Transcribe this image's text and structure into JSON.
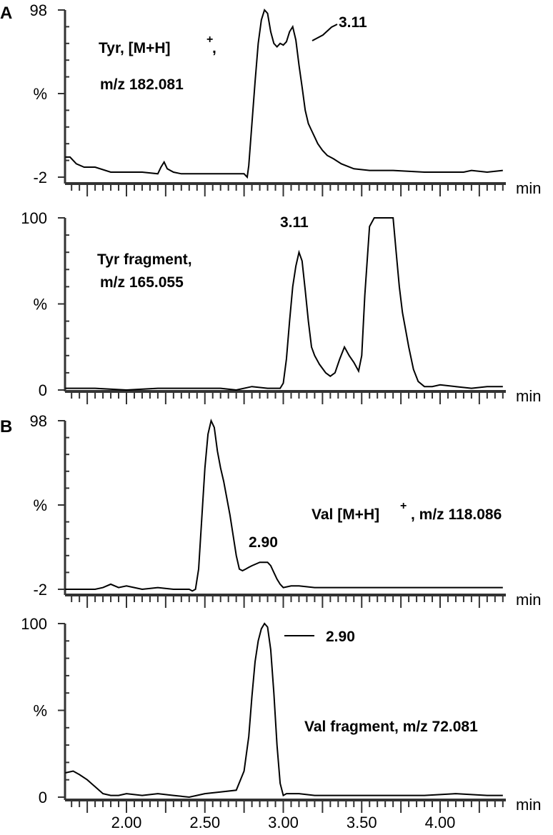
{
  "chart_data": [
    {
      "type": "line",
      "panel_label": "A",
      "title": "Tyr, [M+H]+, m/z 182.081",
      "title_lines": [
        "Tyr, [M+H]",
        "m/z 182.081"
      ],
      "xlabel": "min",
      "ylabel": "%",
      "ylim": [
        -2,
        98
      ],
      "ytick_labels": [
        "98",
        "%",
        "-2"
      ],
      "annotation": {
        "text": "3.11",
        "x": 3.11
      },
      "x": [
        1.61,
        1.64,
        1.68,
        1.73,
        1.8,
        1.9,
        2.0,
        2.1,
        2.2,
        2.22,
        2.24,
        2.26,
        2.3,
        2.35,
        2.4,
        2.5,
        2.6,
        2.7,
        2.75,
        2.77,
        2.78,
        2.8,
        2.82,
        2.84,
        2.86,
        2.88,
        2.9,
        2.92,
        2.94,
        2.96,
        2.98,
        3.0,
        3.02,
        3.04,
        3.06,
        3.08,
        3.1,
        3.12,
        3.14,
        3.16,
        3.18,
        3.2,
        3.22,
        3.25,
        3.28,
        3.32,
        3.37,
        3.45,
        3.55,
        3.7,
        3.9,
        4.05,
        4.15,
        4.2,
        4.3,
        4.4
      ],
      "y": [
        10,
        10,
        6,
        4,
        4,
        1,
        1,
        1,
        0,
        4,
        7,
        3,
        1,
        0,
        0,
        0,
        0,
        0,
        0,
        -2,
        5,
        30,
        55,
        78,
        92,
        98,
        96,
        85,
        78,
        76,
        78,
        77,
        79,
        85,
        88,
        80,
        65,
        52,
        38,
        30,
        26,
        22,
        18,
        14,
        11,
        9,
        6,
        3,
        2,
        2,
        1,
        1,
        1,
        2,
        1,
        2
      ]
    },
    {
      "type": "line",
      "title": "Tyr fragment, m/z 165.055",
      "title_lines": [
        "Tyr fragment,",
        "m/z 165.055"
      ],
      "xlabel": "min",
      "ylabel": "%",
      "ylim": [
        0,
        100
      ],
      "ytick_labels": [
        "100",
        "%",
        "0"
      ],
      "annotation": {
        "text": "3.11",
        "x": 3.11
      },
      "x": [
        1.61,
        1.8,
        2.0,
        2.2,
        2.4,
        2.6,
        2.7,
        2.8,
        2.9,
        2.98,
        3.0,
        3.02,
        3.04,
        3.06,
        3.08,
        3.1,
        3.12,
        3.14,
        3.16,
        3.18,
        3.2,
        3.23,
        3.27,
        3.3,
        3.33,
        3.36,
        3.39,
        3.42,
        3.45,
        3.48,
        3.5,
        3.52,
        3.55,
        3.58,
        3.6,
        3.65,
        3.7,
        3.72,
        3.74,
        3.76,
        3.78,
        3.8,
        3.83,
        3.86,
        3.9,
        3.95,
        4.0,
        4.1,
        4.2,
        4.3,
        4.4
      ],
      "y": [
        1,
        1,
        0,
        1,
        1,
        1,
        0,
        2,
        1,
        1,
        4,
        18,
        40,
        60,
        72,
        80,
        75,
        58,
        40,
        25,
        20,
        15,
        10,
        8,
        10,
        18,
        25,
        20,
        16,
        11,
        20,
        55,
        95,
        100,
        100,
        100,
        100,
        80,
        60,
        45,
        35,
        25,
        12,
        5,
        2,
        2,
        3,
        2,
        1,
        2,
        2
      ]
    },
    {
      "type": "line",
      "panel_label": "B",
      "title": "Val [M+H]+, m/z 118.086",
      "title_lines": [
        "Val [M+H]",
        ", m/z 118.086"
      ],
      "xlabel": "min",
      "ylabel": "%",
      "ylim": [
        -2,
        98
      ],
      "ytick_labels": [
        "98",
        "%",
        "-2"
      ],
      "annotation": {
        "text": "2.90",
        "x": 2.9
      },
      "x": [
        1.61,
        1.8,
        1.85,
        1.9,
        1.95,
        2.0,
        2.05,
        2.1,
        2.2,
        2.3,
        2.4,
        2.42,
        2.44,
        2.46,
        2.48,
        2.5,
        2.52,
        2.54,
        2.56,
        2.58,
        2.6,
        2.62,
        2.64,
        2.66,
        2.68,
        2.7,
        2.72,
        2.74,
        2.76,
        2.78,
        2.8,
        2.85,
        2.9,
        2.92,
        2.94,
        2.96,
        2.98,
        3.0,
        3.05,
        3.1,
        3.2,
        4.4
      ],
      "y": [
        -2,
        -2,
        -1,
        1,
        -1,
        0,
        -1,
        -2,
        -1,
        -2,
        -2,
        -3,
        -2,
        10,
        40,
        70,
        90,
        98,
        94,
        80,
        70,
        62,
        52,
        42,
        30,
        18,
        10,
        9,
        10,
        11,
        12,
        14,
        14,
        12,
        8,
        4,
        1,
        -1,
        0,
        0,
        -1,
        -1
      ]
    },
    {
      "type": "line",
      "title": "Val fragment, m/z 72.081",
      "title_lines": [
        "Val fragment, m/z 72.081"
      ],
      "xlabel": "min",
      "ylabel": "%",
      "ylim": [
        0,
        100
      ],
      "ytick_labels": [
        "100",
        "%",
        "0"
      ],
      "annotation": {
        "text": "2.90",
        "x": 2.9
      },
      "xticks": [
        "2.00",
        "2.50",
        "3.00",
        "3.50",
        "4.00"
      ],
      "x": [
        1.61,
        1.66,
        1.7,
        1.75,
        1.8,
        1.85,
        1.9,
        1.95,
        2.0,
        2.1,
        2.2,
        2.3,
        2.4,
        2.5,
        2.6,
        2.7,
        2.75,
        2.78,
        2.8,
        2.82,
        2.84,
        2.86,
        2.88,
        2.9,
        2.92,
        2.94,
        2.96,
        2.98,
        3.0,
        3.02,
        3.05,
        3.1,
        3.2,
        3.5,
        3.7,
        3.9,
        4.1,
        4.3,
        4.4
      ],
      "y": [
        14,
        15,
        13,
        10,
        6,
        2,
        1,
        1,
        2,
        1,
        2,
        1,
        0,
        2,
        3,
        4,
        15,
        35,
        58,
        78,
        90,
        97,
        100,
        98,
        85,
        60,
        30,
        8,
        1,
        2,
        2,
        2,
        1,
        1,
        1,
        1,
        2,
        1,
        1
      ]
    }
  ],
  "panel_labels": [
    "A",
    "B"
  ],
  "x_axis": {
    "unit_label": "min",
    "tick_labels": [
      "2.00",
      "2.50",
      "3.00",
      "3.50",
      "4.00"
    ],
    "range": [
      1.61,
      4.4
    ]
  },
  "colors": {
    "line": "#000000",
    "axis": "#333333",
    "background": "#ffffff"
  }
}
